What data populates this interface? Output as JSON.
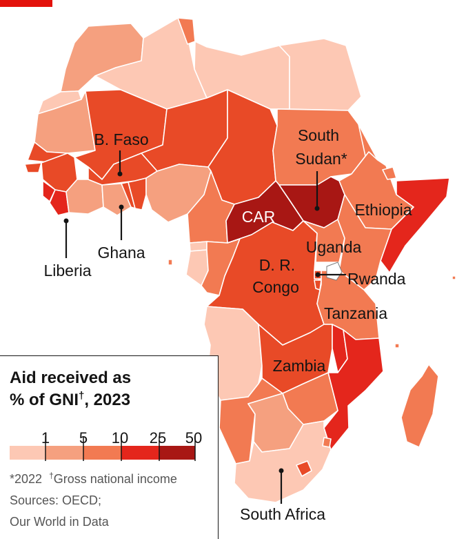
{
  "legend": {
    "title_line1": "Aid received as",
    "title_line2_text": "% of GNI",
    "title_dagger": "†",
    "title_year": ", 2023",
    "bins": [
      {
        "tick": "1",
        "color": "#fdc8b4"
      },
      {
        "tick": "5",
        "color": "#f5a07f"
      },
      {
        "tick": "10",
        "color": "#f27a52"
      },
      {
        "tick": "25",
        "color": "#e4261c"
      },
      {
        "tick": "50",
        "color": "#a81714"
      }
    ],
    "footnote_year": "*2022",
    "footnote_dagger": "†",
    "footnote_gni": "Gross national income",
    "sources_line1": "Sources: OECD;",
    "sources_line2": "Our World in Data"
  },
  "labels": {
    "bfaso": "B. Faso",
    "south_sudan_1": "South",
    "south_sudan_2": "Sudan*",
    "car": "CAR",
    "ethiopia": "Ethiopia",
    "uganda": "Uganda",
    "drc_1": "D. R.",
    "drc_2": "Congo",
    "rwanda": "Rwanda",
    "tanzania": "Tanzania",
    "zambia": "Zambia",
    "ghana": "Ghana",
    "liberia": "Liberia",
    "south_africa": "South Africa"
  },
  "colors": {
    "lightest": "#fdc8b4",
    "light": "#f5a07f",
    "medium": "#f27a52",
    "dark_orange": "#e84a27",
    "red": "#e4261c",
    "darkest": "#a81714",
    "lake": "#ffffff",
    "brand": "#e3120b"
  }
}
